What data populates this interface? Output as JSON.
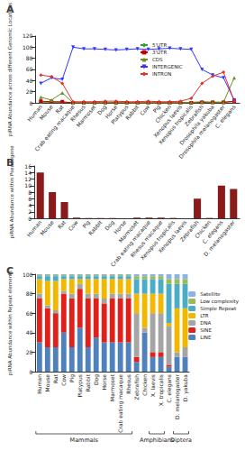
{
  "chart_data": [
    {
      "type": "line",
      "title": "A",
      "ylabel": "piRNA Abundance across different Genomic Locations",
      "categories": [
        "Human",
        "Mouse",
        "Rat",
        "Crab eating macaque",
        "Rhesus",
        "Marmoset",
        "Dog",
        "Horse",
        "Platypus",
        "Rabbit",
        "Cow",
        "Pig",
        "Chicken",
        "Xenopus laevis",
        "Xenopus tropicalis",
        "Zebrafish",
        "Drosophila yakuba",
        "Drosophila melanogaster",
        "C. elegans"
      ],
      "series": [
        {
          "name": "5'UTR",
          "color": "#2ca02c",
          "marker": "diamond",
          "values": [
            1,
            1,
            1,
            0,
            0,
            0,
            0,
            0,
            0,
            0,
            0,
            0,
            0,
            0,
            0,
            1,
            1,
            1,
            2
          ]
        },
        {
          "name": "3'UTR",
          "color": "#c00000",
          "marker": "square",
          "values": [
            3,
            2,
            2,
            0,
            0,
            0,
            0,
            0,
            0,
            0,
            0,
            0,
            0,
            0,
            0,
            1,
            1,
            1,
            3
          ]
        },
        {
          "name": "CDS",
          "color": "#6b8e23",
          "marker": "triangle",
          "values": [
            10,
            5,
            18,
            0,
            0,
            0,
            0,
            1,
            0,
            0,
            0,
            0,
            0,
            0,
            1,
            2,
            1,
            1,
            45
          ]
        },
        {
          "name": "INTERGENIC",
          "color": "#3333ff",
          "marker": "triangle-down",
          "values": [
            35,
            45,
            42,
            100,
            97,
            97,
            96,
            95,
            96,
            97,
            96,
            97,
            98,
            97,
            96,
            60,
            50,
            45,
            5
          ]
        },
        {
          "name": "INTRON",
          "color": "#e03030",
          "marker": "diamond",
          "values": [
            50,
            47,
            35,
            2,
            2,
            2,
            3,
            3,
            2,
            2,
            3,
            2,
            2,
            3,
            8,
            35,
            48,
            55,
            3
          ]
        }
      ],
      "ylim": [
        0,
        120
      ],
      "yticks": [
        0,
        20,
        40,
        60,
        80,
        100,
        120
      ],
      "grid": false,
      "legend": "center"
    },
    {
      "type": "bar",
      "title": "B",
      "ylabel": "piRNA Abundance within Pseudogene",
      "categories": [
        "Human",
        "Mouse",
        "Rat",
        "Cow",
        "Pig",
        "Rabbit",
        "Dog",
        "Horse",
        "Marmoset",
        "Crab eating macaque",
        "Rhesus macaque",
        "Xenopus tropicalis",
        "Xenopus laevis",
        "Zebrafish",
        "Chicken",
        "C. elegans",
        "D. melanogaster"
      ],
      "values": [
        14,
        8,
        5,
        0.2,
        0.1,
        0.1,
        0.1,
        0,
        0.2,
        0.2,
        0.2,
        0.1,
        0,
        6,
        0.1,
        10,
        9
      ],
      "color": "#8b1a1a",
      "ylim": [
        0,
        16
      ],
      "yticks": [
        0,
        2,
        4,
        6,
        8,
        10,
        12,
        14,
        16
      ],
      "grid": false
    },
    {
      "type": "bar",
      "title": "C",
      "ylabel": "piRNA Abundance within Repeat elements",
      "stacked": true,
      "categories": [
        "Human",
        "Mouse",
        "Rat",
        "Cow",
        "Pig",
        "Platypus",
        "Rabbit",
        "Dog",
        "Horse",
        "Marmoset",
        "Crab eating macaque",
        "Rhesus",
        "Zebrafish",
        "Chicken",
        "X. laevis",
        "X. tropicalis",
        "C. elegans",
        "D. melanogaster",
        "D. yakuba"
      ],
      "series": [
        {
          "name": "LINE",
          "color": "#4f81bd",
          "values": [
            30,
            25,
            25,
            40,
            25,
            45,
            25,
            35,
            30,
            30,
            30,
            30,
            10,
            40,
            15,
            15,
            5,
            15,
            15
          ]
        },
        {
          "name": "SINE",
          "color": "#e0201b",
          "values": [
            45,
            40,
            35,
            40,
            50,
            40,
            50,
            40,
            40,
            45,
            45,
            45,
            5,
            0,
            5,
            5,
            2,
            0,
            0
          ]
        },
        {
          "name": "DNA",
          "color": "#a5a5a5",
          "values": [
            5,
            3,
            3,
            3,
            5,
            5,
            5,
            5,
            5,
            5,
            5,
            5,
            45,
            5,
            40,
            40,
            40,
            5,
            10
          ]
        },
        {
          "name": "LTR",
          "color": "#f2b800",
          "values": [
            15,
            25,
            30,
            12,
            15,
            5,
            15,
            15,
            20,
            15,
            15,
            15,
            20,
            35,
            20,
            20,
            3,
            45,
            40
          ]
        },
        {
          "name": "Simple Repeat",
          "color": "#4bacc6",
          "values": [
            3,
            5,
            5,
            3,
            3,
            3,
            3,
            3,
            3,
            3,
            3,
            3,
            15,
            15,
            15,
            15,
            40,
            25,
            25
          ]
        },
        {
          "name": "Low complexity",
          "color": "#9bbb59",
          "values": [
            1,
            1,
            1,
            1,
            1,
            1,
            1,
            1,
            1,
            1,
            1,
            1,
            3,
            3,
            3,
            3,
            5,
            5,
            5
          ]
        },
        {
          "name": "Satellite",
          "color": "#8db3e2",
          "values": [
            1,
            1,
            1,
            1,
            1,
            1,
            1,
            1,
            1,
            1,
            1,
            1,
            2,
            2,
            2,
            2,
            5,
            5,
            5
          ]
        }
      ],
      "groups": [
        {
          "label": "Mammals",
          "from": "Human",
          "to": "Rhesus"
        },
        {
          "label": "Amphibians",
          "from": "X. laevis",
          "to": "X. tropicalis"
        },
        {
          "label": "Diptera",
          "from": "D. melanogaster",
          "to": "D. yakuba"
        }
      ],
      "ylim": [
        0,
        100
      ],
      "yticks": [
        0,
        20,
        40,
        60,
        80,
        100
      ],
      "grid": false,
      "legend": "right"
    }
  ]
}
